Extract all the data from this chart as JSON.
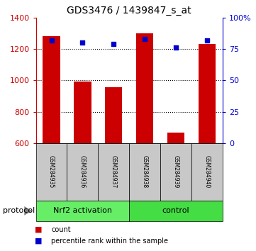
{
  "title": "GDS3476 / 1439847_s_at",
  "samples": [
    "GSM284935",
    "GSM284936",
    "GSM284937",
    "GSM284938",
    "GSM284939",
    "GSM284940"
  ],
  "counts": [
    1280,
    990,
    955,
    1300,
    665,
    1230
  ],
  "percentiles": [
    82,
    80,
    79,
    83,
    76,
    82
  ],
  "groups": [
    {
      "label": "Nrf2 activation",
      "start": 0,
      "end": 3,
      "color": "#66EE66"
    },
    {
      "label": "control",
      "start": 3,
      "end": 6,
      "color": "#44DD44"
    }
  ],
  "left_ylim": [
    600,
    1400
  ],
  "right_ylim": [
    0,
    100
  ],
  "left_yticks": [
    600,
    800,
    1000,
    1200,
    1400
  ],
  "right_yticks": [
    0,
    25,
    50,
    75,
    100
  ],
  "right_yticklabels": [
    "0",
    "25",
    "50",
    "75",
    "100%"
  ],
  "grid_values": [
    800,
    1000,
    1200
  ],
  "bar_color": "#CC0000",
  "dot_color": "#0000CC",
  "bar_width": 0.55,
  "left_axis_color": "#CC0000",
  "right_axis_color": "#0000CC",
  "legend_items": [
    {
      "label": "count",
      "color": "#CC0000"
    },
    {
      "label": "percentile rank within the sample",
      "color": "#0000CC"
    }
  ],
  "protocol_label": "protocol",
  "sample_row_color": "#C8C8C8",
  "sample_row_color2": "#D0D0D0"
}
